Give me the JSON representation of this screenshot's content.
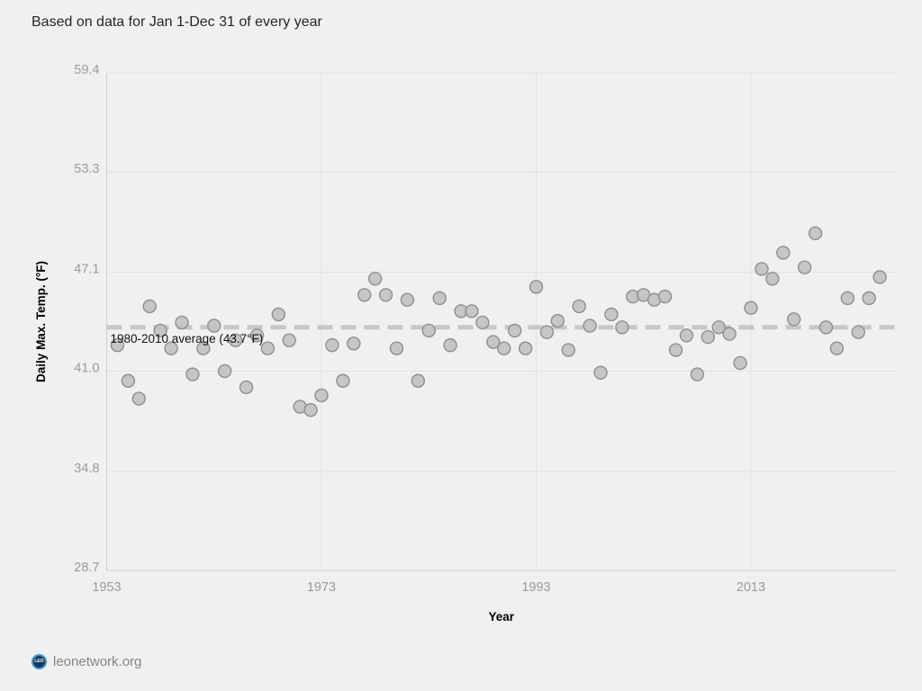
{
  "header": {
    "title": "Based on data for Jan 1-Dec 31 of every year"
  },
  "footer": {
    "logo_text": "LEO",
    "site": "leonetwork.org"
  },
  "chart_data": {
    "type": "scatter",
    "title": "Based on data for Jan 1-Dec 31 of every year",
    "xlabel": "Year",
    "ylabel": "Daily Max. Temp. (°F)",
    "x": [
      1954,
      1955,
      1956,
      1957,
      1958,
      1959,
      1960,
      1961,
      1962,
      1963,
      1964,
      1965,
      1966,
      1967,
      1968,
      1969,
      1970,
      1971,
      1972,
      1973,
      1974,
      1975,
      1976,
      1977,
      1978,
      1979,
      1980,
      1981,
      1982,
      1983,
      1984,
      1985,
      1986,
      1987,
      1988,
      1989,
      1990,
      1991,
      1992,
      1993,
      1994,
      1995,
      1996,
      1997,
      1998,
      1999,
      2000,
      2001,
      2002,
      2003,
      2004,
      2005,
      2006,
      2007,
      2008,
      2009,
      2010,
      2011,
      2012,
      2013,
      2014,
      2015,
      2016,
      2017,
      2018,
      2019,
      2020,
      2021,
      2022,
      2023,
      2024,
      2025
    ],
    "y": [
      42.6,
      40.4,
      39.3,
      45.0,
      43.5,
      42.4,
      44.0,
      40.8,
      42.4,
      43.8,
      41.0,
      42.9,
      40.0,
      43.2,
      42.4,
      44.5,
      42.9,
      38.8,
      38.6,
      39.5,
      42.6,
      40.4,
      42.7,
      45.7,
      46.7,
      45.7,
      42.4,
      45.4,
      40.4,
      43.5,
      45.5,
      42.6,
      44.7,
      44.7,
      44.0,
      42.8,
      42.4,
      43.5,
      42.4,
      46.2,
      43.4,
      44.1,
      42.3,
      45.0,
      43.8,
      40.9,
      44.5,
      43.7,
      45.6,
      45.7,
      45.4,
      45.6,
      42.3,
      43.2,
      40.8,
      43.1,
      43.7,
      43.3,
      41.5,
      44.9,
      47.3,
      46.7,
      48.3,
      44.2,
      47.4,
      49.5,
      43.7,
      42.4,
      45.5,
      43.4,
      45.5,
      46.8
    ],
    "x_tick_labels": [
      "1953",
      "1973",
      "1993",
      "2013"
    ],
    "y_tick_labels": [
      "59.4",
      "53.3",
      "47.1",
      "41.0",
      "34.8",
      "28.7"
    ],
    "xlim": [
      1953,
      2026.5
    ],
    "ylim": [
      28.7,
      59.4
    ],
    "grid": true,
    "legend": false,
    "reference_line": {
      "value": 43.7,
      "label": "1980-2010 average (43.7°F)"
    },
    "colors": {
      "background": "#f0f0f0",
      "grid": "#e2e2e2",
      "axis": "#d2d2d2",
      "tick_label": "#9a9a9a",
      "point_fill": "#c1c1c1",
      "point_stroke": "#8f8f8f",
      "reference_line": "#c7c7c7",
      "reference_label": "#111111",
      "axis_title": "#000000"
    }
  }
}
